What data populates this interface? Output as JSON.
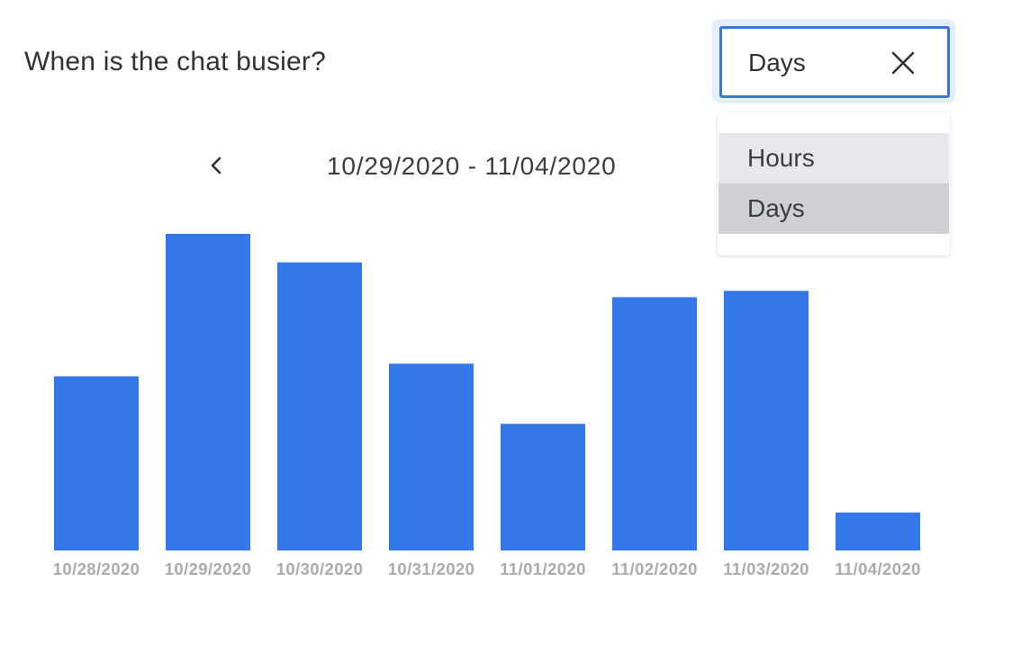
{
  "title": "When is the chat busier?",
  "select": {
    "value": "Days",
    "clear_icon": "close-icon",
    "options": [
      "Hours",
      "Days"
    ],
    "selected": "Days"
  },
  "range": {
    "prev_icon": "chevron-left-icon",
    "label": "10/29/2020 - 11/04/2020"
  },
  "colors": {
    "bar": "#3477e8",
    "select_border": "#3a76e2",
    "tick_text": "#a8abb0"
  },
  "chart_data": {
    "type": "bar",
    "categories": [
      "10/28/2020",
      "10/29/2020",
      "10/30/2020",
      "10/31/2020",
      "11/01/2020",
      "11/02/2020",
      "11/03/2020",
      "11/04/2020"
    ],
    "values": [
      55,
      100,
      91,
      59,
      40,
      80,
      82,
      12
    ],
    "ylim": [
      0,
      100
    ],
    "grid": false,
    "legend": "none",
    "xlabel": "",
    "ylabel": ""
  }
}
